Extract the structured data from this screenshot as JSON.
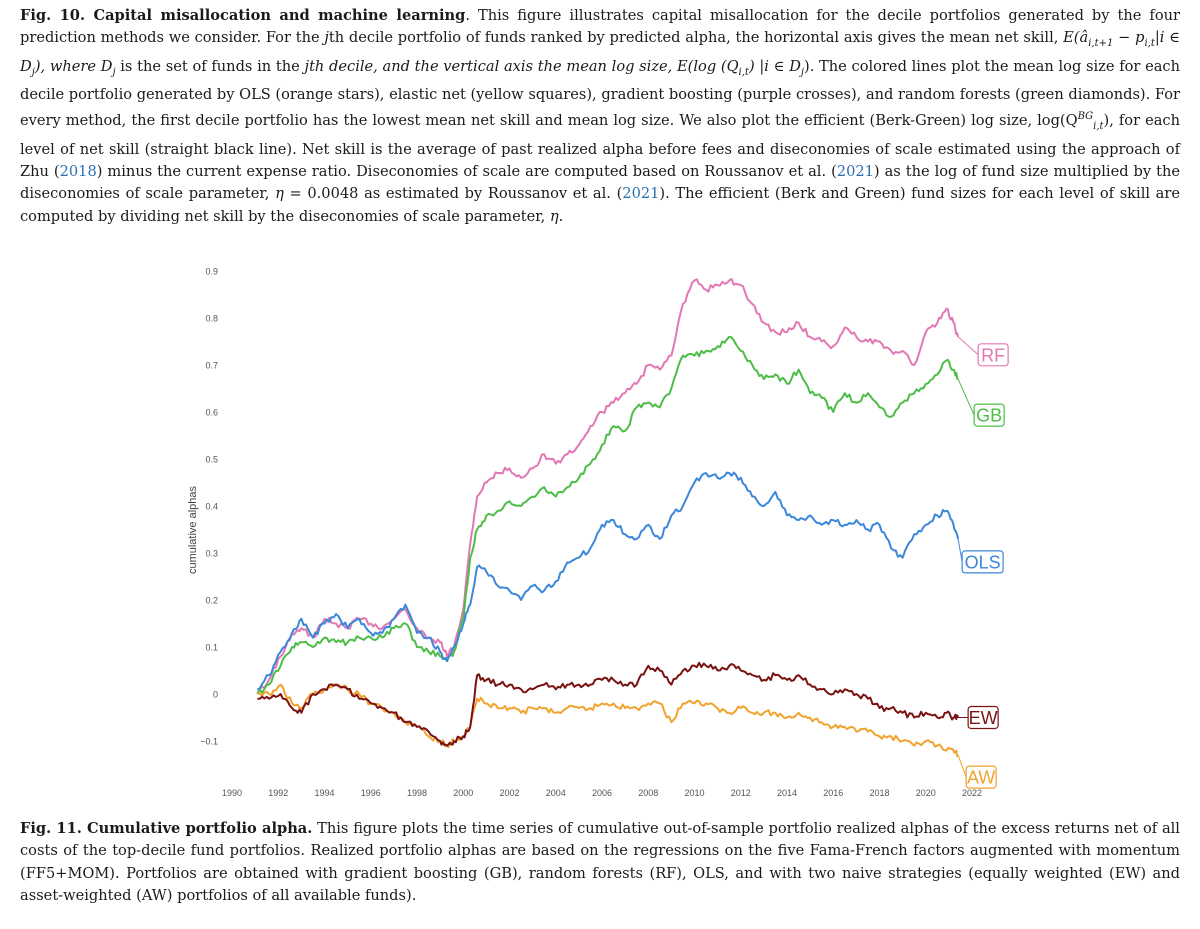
{
  "caption_top": {
    "label": "Fig. 10. Capital misallocation and machine learning",
    "parts": [
      ". This figure illustrates capital misallocation for the decile portfolios generated by the four prediction methods we consider. For the ",
      "j",
      "th decile portfolio of funds ranked by predicted alpha, the horizontal axis gives the mean net skill, ",
      "E(â",
      "i,t+1",
      " − p",
      "i,t",
      "|i ∈ D",
      "j",
      "), where D",
      "j",
      " is the set of funds in the ",
      "j",
      "th decile, and the vertical axis the mean log size, E(log (Q",
      "i,t",
      ") |i ∈ D",
      "j",
      "). The colored lines plot the mean log size for each decile portfolio generated by OLS (orange stars), elastic net (yellow squares), gradient boosting (purple crosses), and random forests (green diamonds). For every method, the first decile portfolio has the lowest mean net skill and mean log size. We also plot the efficient (Berk-Green) log size, log(Q",
      "BG",
      "i,t",
      "), for each level of net skill (straight black line). Net skill is the average of past realized alpha before fees and diseconomies of scale estimated using the approach of Zhu (",
      "2018",
      ") minus the current expense ratio. Diseconomies of scale are computed based on Roussanov et al. (",
      "2021",
      ") as the log of fund size multiplied by the diseconomies of scale parameter, ",
      "η",
      " = 0.0048 as estimated by Roussanov et al. (",
      "2021",
      "). The efficient (Berk and Green) fund sizes for each level of skill are computed by dividing net skill by the diseconomies of scale parameter, ",
      "η",
      "."
    ]
  },
  "caption_bottom": {
    "label": "Fig. 11. Cumulative portfolio alpha.",
    "text": " This figure plots the time series of cumulative out-of-sample portfolio realized alphas of the excess returns net of all costs of the top-decile fund portfolios. Realized portfolio alphas are based on the regressions on the five Fama-French factors augmented with momentum (FF5+MOM). Portfolios are obtained with gradient boosting (GB), random forests (RF), OLS, and with two naive strategies (equally weighted (EW) and asset-weighted (AW) portfolios of all available funds)."
  },
  "chart_data": {
    "type": "line",
    "xlabel": "",
    "ylabel": "cumulative alphas",
    "xlim": [
      1990,
      2022
    ],
    "ylim": [
      -0.13,
      0.92
    ],
    "x_ticks": [
      "1990",
      "1992",
      "1994",
      "1996",
      "1998",
      "2000",
      "2002",
      "2004",
      "2006",
      "2008",
      "2010",
      "2012",
      "2014",
      "2016",
      "2018",
      "2020",
      "2022"
    ],
    "y_ticks": [
      "-0.1",
      "0",
      "0.1",
      "0.2",
      "0.3",
      "0.4",
      "0.5",
      "0.6",
      "0.7",
      "0.8",
      "0.9"
    ],
    "legend": "labels at line ends (right)",
    "grid": false,
    "series": [
      {
        "name": "RF",
        "color": "#e377b5",
        "x": [
          1991.1,
          1991.6,
          1992.1,
          1992.6,
          1993.0,
          1993.5,
          1994.0,
          1994.5,
          1995.0,
          1995.5,
          1996.0,
          1996.5,
          1997.0,
          1997.5,
          1998.0,
          1998.5,
          1999.0,
          1999.3,
          1999.6,
          2000.0,
          2000.3,
          2000.6,
          2001.0,
          2001.5,
          2002.0,
          2002.5,
          2003.0,
          2003.5,
          2004.0,
          2004.5,
          2005.0,
          2005.5,
          2006.0,
          2006.5,
          2007.0,
          2007.5,
          2008.0,
          2008.5,
          2009.0,
          2009.5,
          2010.0,
          2010.5,
          2011.0,
          2011.5,
          2012.0,
          2012.5,
          2013.0,
          2013.5,
          2014.0,
          2014.5,
          2015.0,
          2015.5,
          2016.0,
          2016.5,
          2017.0,
          2017.5,
          2018.0,
          2018.5,
          2019.0,
          2019.5,
          2020.0,
          2020.5,
          2020.9,
          2021.2,
          2021.4
        ],
        "y": [
          0.0,
          0.03,
          0.08,
          0.13,
          0.14,
          0.12,
          0.16,
          0.15,
          0.14,
          0.16,
          0.15,
          0.14,
          0.16,
          0.18,
          0.14,
          0.12,
          0.11,
          0.08,
          0.1,
          0.18,
          0.32,
          0.42,
          0.45,
          0.47,
          0.48,
          0.46,
          0.48,
          0.51,
          0.49,
          0.51,
          0.53,
          0.57,
          0.6,
          0.62,
          0.64,
          0.66,
          0.7,
          0.69,
          0.72,
          0.83,
          0.88,
          0.86,
          0.87,
          0.88,
          0.87,
          0.83,
          0.79,
          0.77,
          0.77,
          0.79,
          0.76,
          0.75,
          0.74,
          0.78,
          0.76,
          0.75,
          0.75,
          0.73,
          0.73,
          0.7,
          0.77,
          0.79,
          0.82,
          0.79,
          0.76
        ]
      },
      {
        "name": "GB",
        "color": "#4dbd47",
        "x": [
          1991.1,
          1991.6,
          1992.1,
          1992.6,
          1993.0,
          1993.5,
          1994.0,
          1994.5,
          1995.0,
          1995.5,
          1996.0,
          1996.5,
          1997.0,
          1997.5,
          1998.0,
          1998.5,
          1999.0,
          1999.3,
          1999.6,
          2000.0,
          2000.3,
          2000.6,
          2001.0,
          2001.5,
          2002.0,
          2002.5,
          2003.0,
          2003.5,
          2004.0,
          2004.5,
          2005.0,
          2005.5,
          2006.0,
          2006.5,
          2007.0,
          2007.5,
          2008.0,
          2008.5,
          2009.0,
          2009.5,
          2010.0,
          2010.5,
          2011.0,
          2011.5,
          2012.0,
          2012.5,
          2013.0,
          2013.5,
          2014.0,
          2014.5,
          2015.0,
          2015.5,
          2016.0,
          2016.5,
          2017.0,
          2017.5,
          2018.0,
          2018.5,
          2019.0,
          2019.5,
          2020.0,
          2020.5,
          2020.9,
          2021.2,
          2021.4
        ],
        "y": [
          0.0,
          0.02,
          0.06,
          0.1,
          0.11,
          0.1,
          0.12,
          0.11,
          0.11,
          0.12,
          0.12,
          0.12,
          0.14,
          0.15,
          0.1,
          0.09,
          0.08,
          0.07,
          0.09,
          0.16,
          0.29,
          0.35,
          0.38,
          0.39,
          0.41,
          0.4,
          0.42,
          0.44,
          0.42,
          0.44,
          0.46,
          0.49,
          0.53,
          0.57,
          0.56,
          0.61,
          0.62,
          0.61,
          0.65,
          0.72,
          0.72,
          0.73,
          0.74,
          0.76,
          0.73,
          0.7,
          0.67,
          0.68,
          0.66,
          0.69,
          0.64,
          0.63,
          0.6,
          0.64,
          0.62,
          0.64,
          0.61,
          0.59,
          0.62,
          0.64,
          0.66,
          0.68,
          0.71,
          0.69,
          0.67
        ]
      },
      {
        "name": "OLS",
        "color": "#3d87d9",
        "x": [
          1991.1,
          1991.6,
          1992.1,
          1992.6,
          1993.0,
          1993.5,
          1994.0,
          1994.5,
          1995.0,
          1995.5,
          1996.0,
          1996.5,
          1997.0,
          1997.5,
          1998.0,
          1998.5,
          1999.0,
          1999.3,
          1999.6,
          2000.0,
          2000.3,
          2000.6,
          2001.0,
          2001.5,
          2002.0,
          2002.5,
          2003.0,
          2003.5,
          2004.0,
          2004.5,
          2005.0,
          2005.5,
          2006.0,
          2006.5,
          2007.0,
          2007.5,
          2008.0,
          2008.5,
          2009.0,
          2009.5,
          2010.0,
          2010.5,
          2011.0,
          2011.5,
          2012.0,
          2012.5,
          2013.0,
          2013.5,
          2014.0,
          2014.5,
          2015.0,
          2015.5,
          2016.0,
          2016.5,
          2017.0,
          2017.5,
          2018.0,
          2018.5,
          2019.0,
          2019.5,
          2020.0,
          2020.5,
          2020.9,
          2021.2,
          2021.4
        ],
        "y": [
          0.01,
          0.04,
          0.09,
          0.13,
          0.16,
          0.12,
          0.15,
          0.17,
          0.14,
          0.16,
          0.13,
          0.13,
          0.16,
          0.19,
          0.13,
          0.12,
          0.09,
          0.07,
          0.1,
          0.15,
          0.19,
          0.27,
          0.26,
          0.23,
          0.22,
          0.2,
          0.23,
          0.22,
          0.24,
          0.28,
          0.29,
          0.31,
          0.36,
          0.37,
          0.34,
          0.33,
          0.36,
          0.33,
          0.38,
          0.4,
          0.45,
          0.47,
          0.46,
          0.47,
          0.46,
          0.42,
          0.4,
          0.43,
          0.38,
          0.37,
          0.38,
          0.36,
          0.37,
          0.36,
          0.37,
          0.35,
          0.36,
          0.31,
          0.29,
          0.34,
          0.36,
          0.38,
          0.39,
          0.36,
          0.33
        ]
      },
      {
        "name": "EW",
        "color": "#7a1212",
        "x": [
          1991.1,
          1991.6,
          1992.1,
          1992.6,
          1993.0,
          1993.5,
          1994.0,
          1994.5,
          1995.0,
          1995.5,
          1996.0,
          1996.5,
          1997.0,
          1997.5,
          1998.0,
          1998.5,
          1999.0,
          1999.3,
          1999.6,
          2000.0,
          2000.3,
          2000.6,
          2001.0,
          2001.5,
          2002.0,
          2002.5,
          2003.0,
          2003.5,
          2004.0,
          2004.5,
          2005.0,
          2005.5,
          2006.0,
          2006.5,
          2007.0,
          2007.5,
          2008.0,
          2008.5,
          2009.0,
          2009.5,
          2010.0,
          2010.5,
          2011.0,
          2011.5,
          2012.0,
          2012.5,
          2013.0,
          2013.5,
          2014.0,
          2014.5,
          2015.0,
          2015.5,
          2016.0,
          2016.5,
          2017.0,
          2017.5,
          2018.0,
          2018.5,
          2019.0,
          2019.5,
          2020.0,
          2020.5,
          2020.9,
          2021.2,
          2021.4
        ],
        "y": [
          -0.01,
          -0.01,
          0.0,
          -0.03,
          -0.04,
          0.0,
          0.01,
          0.02,
          0.01,
          -0.01,
          -0.02,
          -0.03,
          -0.04,
          -0.06,
          -0.07,
          -0.08,
          -0.1,
          -0.11,
          -0.1,
          -0.09,
          -0.07,
          0.04,
          0.03,
          0.02,
          0.02,
          0.01,
          0.01,
          0.02,
          0.01,
          0.02,
          0.02,
          0.02,
          0.03,
          0.03,
          0.02,
          0.02,
          0.06,
          0.05,
          0.02,
          0.05,
          0.06,
          0.06,
          0.05,
          0.06,
          0.05,
          0.04,
          0.03,
          0.04,
          0.03,
          0.04,
          0.02,
          0.01,
          0.0,
          0.01,
          0.0,
          -0.01,
          -0.03,
          -0.03,
          -0.04,
          -0.05,
          -0.04,
          -0.05,
          -0.04,
          -0.05,
          -0.05
        ]
      },
      {
        "name": "AW",
        "color": "#f0a32e",
        "x": [
          1991.1,
          1991.6,
          1992.1,
          1992.6,
          1993.0,
          1993.5,
          1994.0,
          1994.5,
          1995.0,
          1995.5,
          1996.0,
          1996.5,
          1997.0,
          1997.5,
          1998.0,
          1998.5,
          1999.0,
          1999.3,
          1999.6,
          2000.0,
          2000.3,
          2000.6,
          2001.0,
          2001.5,
          2002.0,
          2002.5,
          2003.0,
          2003.5,
          2004.0,
          2004.5,
          2005.0,
          2005.5,
          2006.0,
          2006.5,
          2007.0,
          2007.5,
          2008.0,
          2008.5,
          2009.0,
          2009.5,
          2010.0,
          2010.5,
          2011.0,
          2011.5,
          2012.0,
          2012.5,
          2013.0,
          2013.5,
          2014.0,
          2014.5,
          2015.0,
          2015.5,
          2016.0,
          2016.5,
          2017.0,
          2017.5,
          2018.0,
          2018.5,
          2019.0,
          2019.5,
          2020.0,
          2020.5,
          2020.9,
          2021.2,
          2021.4
        ],
        "y": [
          0.0,
          0.0,
          0.02,
          -0.02,
          -0.03,
          0.0,
          0.01,
          0.02,
          0.01,
          0.0,
          -0.02,
          -0.03,
          -0.04,
          -0.06,
          -0.07,
          -0.09,
          -0.1,
          -0.11,
          -0.1,
          -0.09,
          -0.07,
          -0.01,
          -0.02,
          -0.03,
          -0.03,
          -0.04,
          -0.03,
          -0.03,
          -0.04,
          -0.03,
          -0.03,
          -0.03,
          -0.02,
          -0.02,
          -0.03,
          -0.03,
          -0.02,
          -0.02,
          -0.06,
          -0.02,
          -0.02,
          -0.02,
          -0.03,
          -0.04,
          -0.03,
          -0.04,
          -0.04,
          -0.04,
          -0.05,
          -0.04,
          -0.05,
          -0.06,
          -0.07,
          -0.07,
          -0.08,
          -0.08,
          -0.09,
          -0.09,
          -0.1,
          -0.11,
          -0.1,
          -0.11,
          -0.12,
          -0.12,
          -0.13
        ]
      }
    ]
  }
}
